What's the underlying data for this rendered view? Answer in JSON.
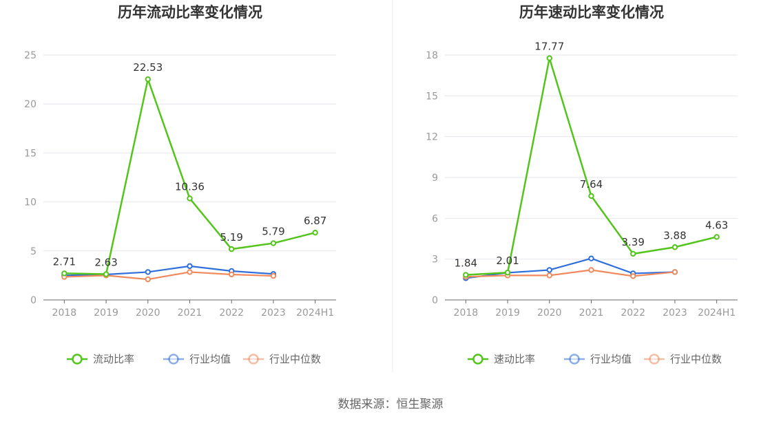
{
  "source": "数据来源：恒生聚源",
  "colors": {
    "main": "#52c41a",
    "avg": "#2f6fdc",
    "median": "#f08a5d"
  },
  "chart_data": [
    {
      "type": "line",
      "title": "历年流动比率变化情况",
      "categories": [
        "2018",
        "2019",
        "2020",
        "2021",
        "2022",
        "2023",
        "2024H1"
      ],
      "yticks": [
        "0",
        "5",
        "10",
        "15",
        "20",
        "25"
      ],
      "ylim": [
        0,
        25
      ],
      "grid": true,
      "legend_position": "bottom",
      "series": [
        {
          "name": "流动比率",
          "color": "#52c41a",
          "values": [
            2.71,
            2.63,
            22.53,
            10.36,
            5.19,
            5.79,
            6.87
          ],
          "labels": [
            "2.71",
            "2.63",
            "22.53",
            "10.36",
            "5.19",
            "5.79",
            "6.87"
          ]
        },
        {
          "name": "行业均值",
          "color": "#2f6fdc",
          "values": [
            2.5,
            2.6,
            2.85,
            3.45,
            2.95,
            2.65,
            null
          ]
        },
        {
          "name": "行业中位数",
          "color": "#f08a5d",
          "values": [
            2.35,
            2.5,
            2.1,
            2.85,
            2.6,
            2.45,
            null
          ]
        }
      ]
    },
    {
      "type": "line",
      "title": "历年速动比率变化情况",
      "categories": [
        "2018",
        "2019",
        "2020",
        "2021",
        "2022",
        "2023",
        "2024H1"
      ],
      "yticks": [
        "0",
        "3",
        "6",
        "9",
        "12",
        "15",
        "18"
      ],
      "ylim": [
        0,
        18
      ],
      "grid": true,
      "legend_position": "bottom",
      "series": [
        {
          "name": "速动比率",
          "color": "#52c41a",
          "values": [
            1.84,
            2.01,
            17.77,
            7.64,
            3.39,
            3.88,
            4.63
          ],
          "labels": [
            "1.84",
            "2.01",
            "17.77",
            "7.64",
            "3.39",
            "3.88",
            "4.63"
          ]
        },
        {
          "name": "行业均值",
          "color": "#2f6fdc",
          "values": [
            1.6,
            2.0,
            2.2,
            3.05,
            1.95,
            2.05,
            null
          ]
        },
        {
          "name": "行业中位数",
          "color": "#f08a5d",
          "values": [
            1.7,
            1.8,
            1.8,
            2.2,
            1.75,
            2.05,
            null
          ]
        }
      ]
    }
  ]
}
